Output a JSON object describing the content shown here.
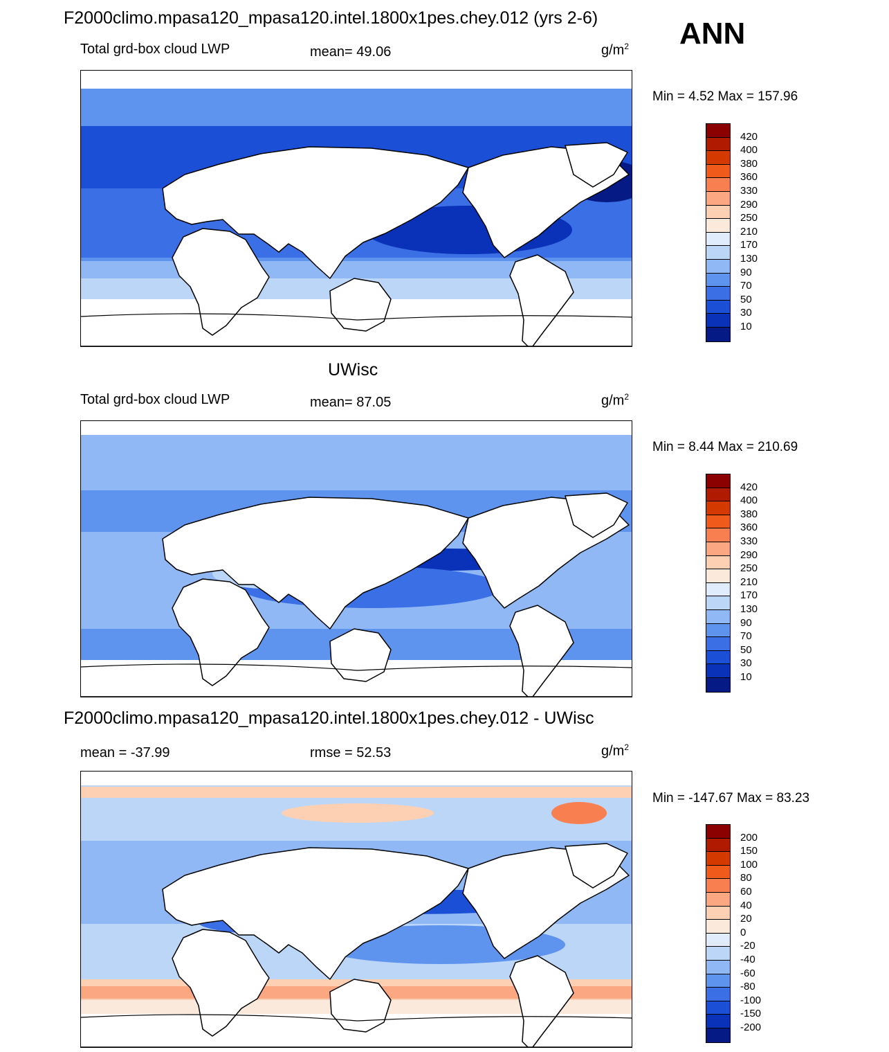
{
  "season": "ANN",
  "panels": [
    {
      "title": "F2000climo.mpasa120_mpasa120.intel.1800x1pes.chey.012 (yrs 2-6)",
      "left_label": "Total grd-box cloud LWP",
      "center_label": "mean=  49.06",
      "units": "g/m",
      "units_sup": "2",
      "minmax": "Min =   4.52 Max = 157.96",
      "colorbar": {
        "labels": [
          "420",
          "400",
          "380",
          "360",
          "330",
          "290",
          "250",
          "210",
          "170",
          "130",
          "90",
          "70",
          "50",
          "30",
          "10"
        ],
        "colors": [
          "#8b0000",
          "#b01a00",
          "#d43a00",
          "#f05a1a",
          "#f88050",
          "#fba882",
          "#fdd0b4",
          "#fbeadb",
          "#e0ecfb",
          "#bcd6f7",
          "#8fb8f5",
          "#5f94ee",
          "#3a6fe5",
          "#1b4fd6",
          "#0a32b8",
          "#061a86"
        ]
      },
      "map_theme": "model"
    },
    {
      "title": "UWisc",
      "left_label": "Total grd-box cloud LWP",
      "center_label": "mean=  87.05",
      "units": "g/m",
      "units_sup": "2",
      "minmax": "Min =   8.44 Max = 210.69",
      "colorbar": {
        "labels": [
          "420",
          "400",
          "380",
          "360",
          "330",
          "290",
          "250",
          "210",
          "170",
          "130",
          "90",
          "70",
          "50",
          "30",
          "10"
        ],
        "colors": [
          "#8b0000",
          "#b01a00",
          "#d43a00",
          "#f05a1a",
          "#f88050",
          "#fba882",
          "#fdd0b4",
          "#fbeadb",
          "#e0ecfb",
          "#bcd6f7",
          "#8fb8f5",
          "#5f94ee",
          "#3a6fe5",
          "#1b4fd6",
          "#0a32b8",
          "#061a86"
        ]
      },
      "map_theme": "obs"
    },
    {
      "title": "F2000climo.mpasa120_mpasa120.intel.1800x1pes.chey.012 - UWisc",
      "left_label": "mean = -37.99",
      "center_label": "rmse =  52.53",
      "units": "g/m",
      "units_sup": "2",
      "minmax": "Min = -147.67 Max =  83.23",
      "colorbar": {
        "labels": [
          "200",
          "150",
          "100",
          "80",
          "60",
          "40",
          "20",
          "0",
          "-20",
          "-40",
          "-60",
          "-80",
          "-100",
          "-150",
          "-200"
        ],
        "colors": [
          "#8b0000",
          "#b01a00",
          "#d43a00",
          "#f05a1a",
          "#f88050",
          "#fba882",
          "#fdd0b4",
          "#fbeadb",
          "#e0ecfb",
          "#bcd6f7",
          "#8fb8f5",
          "#5f94ee",
          "#3a6fe5",
          "#1b4fd6",
          "#0a32b8",
          "#061a86"
        ]
      },
      "map_theme": "diff"
    }
  ]
}
